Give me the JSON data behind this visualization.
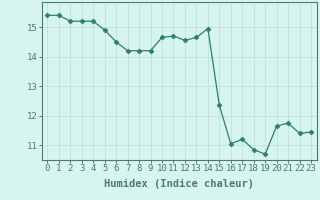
{
  "x": [
    0,
    1,
    2,
    3,
    4,
    5,
    6,
    7,
    8,
    9,
    10,
    11,
    12,
    13,
    14,
    15,
    16,
    17,
    18,
    19,
    20,
    21,
    22,
    23
  ],
  "y": [
    15.4,
    15.4,
    15.2,
    15.2,
    15.2,
    14.9,
    14.5,
    14.2,
    14.2,
    14.2,
    14.65,
    14.7,
    14.55,
    14.65,
    14.95,
    12.35,
    11.05,
    11.2,
    10.85,
    10.7,
    11.65,
    11.75,
    11.4,
    11.45
  ],
  "line_color": "#2e7d6e",
  "marker": "D",
  "marker_size": 2.5,
  "bg_color": "#d6f5ee",
  "grid_color": "#c0ddd8",
  "axis_color": "#4a7a72",
  "tick_color": "#4a7a72",
  "xlabel": "Humidex (Indice chaleur)",
  "ylim": [
    10.5,
    15.85
  ],
  "xlim": [
    -0.5,
    23.5
  ],
  "yticks": [
    11,
    12,
    13,
    14,
    15
  ],
  "xticks": [
    0,
    1,
    2,
    3,
    4,
    5,
    6,
    7,
    8,
    9,
    10,
    11,
    12,
    13,
    14,
    15,
    16,
    17,
    18,
    19,
    20,
    21,
    22,
    23
  ],
  "font_size": 6.5,
  "label_font_size": 7.5
}
